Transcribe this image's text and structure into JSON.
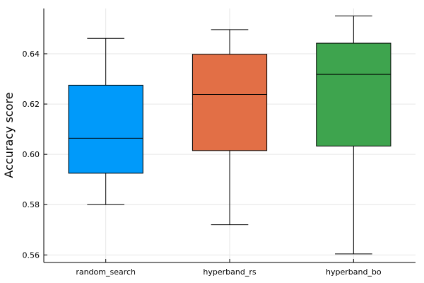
{
  "chart_data": {
    "type": "box",
    "title": "",
    "xlabel": "",
    "ylabel": "Accuracy score",
    "ylim": [
      0.557,
      0.658
    ],
    "grid": true,
    "legend": "none",
    "y_ticks": [
      0.56,
      0.58,
      0.6,
      0.62,
      0.64
    ],
    "y_tick_labels": [
      "0.56",
      "0.58",
      "0.60",
      "0.62",
      "0.64"
    ],
    "categories": [
      "random_search",
      "hyperband_rs",
      "hyperband_bo"
    ],
    "boxes": [
      {
        "category": "random_search",
        "color": "#009AFA",
        "whisker_low": 0.58,
        "q1": 0.5925,
        "median": 0.6064,
        "q3": 0.6275,
        "whisker_high": 0.6461
      },
      {
        "category": "hyperband_rs",
        "color": "#E26F46",
        "whisker_low": 0.572,
        "q1": 0.6015,
        "median": 0.6238,
        "q3": 0.6398,
        "whisker_high": 0.6496
      },
      {
        "category": "hyperband_bo",
        "color": "#3EA44E",
        "whisker_low": 0.5604,
        "q1": 0.6033,
        "median": 0.6318,
        "q3": 0.6442,
        "whisker_high": 0.655
      }
    ]
  }
}
